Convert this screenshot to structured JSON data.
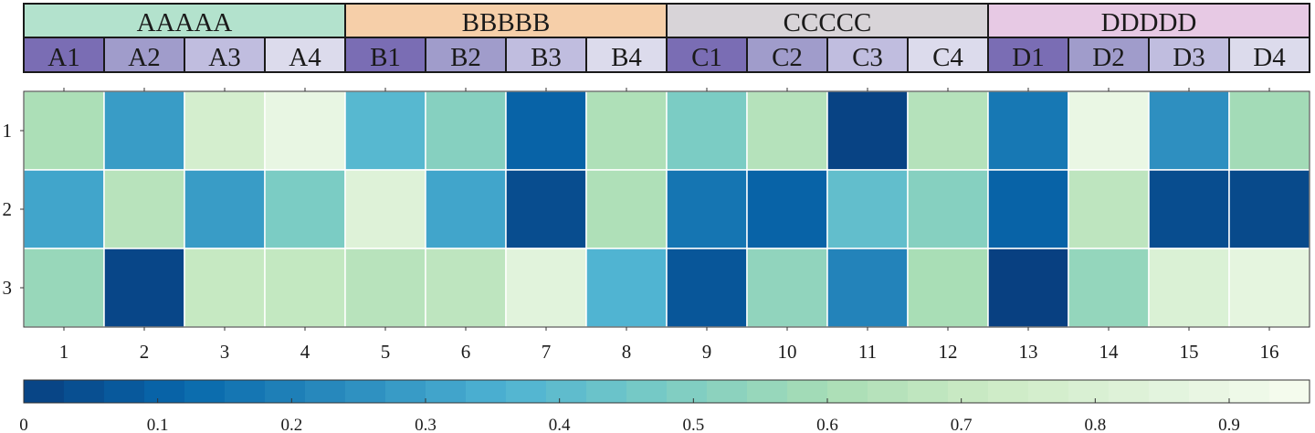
{
  "chart_data": {
    "type": "heatmap",
    "colormap": "GnBu reversed (dark blue at 0 to near-white green at 1)",
    "groups": [
      {
        "label": "AAAAA",
        "color": "#b3e2cd",
        "members": [
          "A1",
          "A2",
          "A3",
          "A4"
        ]
      },
      {
        "label": "BBBBB",
        "color": "#f6cfa9",
        "members": [
          "B1",
          "B2",
          "B3",
          "B4"
        ]
      },
      {
        "label": "CCCCC",
        "color": "#d8d4d8",
        "members": [
          "C1",
          "C2",
          "C3",
          "C4"
        ]
      },
      {
        "label": "DDDDD",
        "color": "#e7c9e4",
        "members": [
          "D1",
          "D2",
          "D3",
          "D4"
        ]
      }
    ],
    "subgroup_colors": [
      "#7a6db4",
      "#a09ccb",
      "#c0bddf",
      "#dcdbec"
    ],
    "x_ticks": [
      "1",
      "2",
      "3",
      "4",
      "5",
      "6",
      "7",
      "8",
      "9",
      "10",
      "11",
      "12",
      "13",
      "14",
      "15",
      "16"
    ],
    "y_ticks": [
      "1",
      "2",
      "3"
    ],
    "values": [
      [
        0.64,
        0.3,
        0.8,
        0.92,
        0.4,
        0.53,
        0.11,
        0.65,
        0.5,
        0.67,
        0.01,
        0.67,
        0.18,
        0.93,
        0.26,
        0.61
      ],
      [
        0.33,
        0.68,
        0.3,
        0.5,
        0.86,
        0.33,
        0.04,
        0.65,
        0.17,
        0.11,
        0.43,
        0.53,
        0.11,
        0.7,
        0.04,
        0.03
      ],
      [
        0.58,
        0.02,
        0.73,
        0.72,
        0.68,
        0.7,
        0.88,
        0.38,
        0.07,
        0.56,
        0.22,
        0.63,
        0.0,
        0.57,
        0.84,
        0.9
      ]
    ],
    "colorbar": {
      "ticks": [
        "0",
        "0.1",
        "0.2",
        "0.3",
        "0.4",
        "0.5",
        "0.6",
        "0.7",
        "0.8",
        "0.9"
      ],
      "range": [
        0,
        0.96
      ],
      "steps": 32
    }
  }
}
